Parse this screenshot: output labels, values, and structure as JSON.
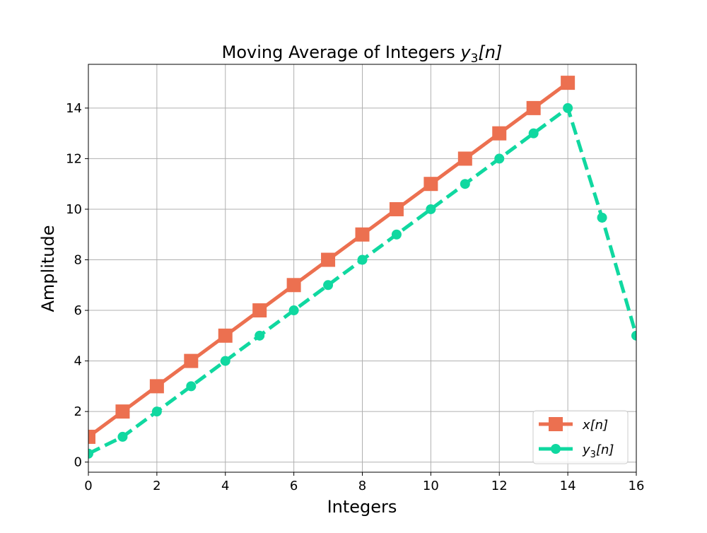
{
  "chart_data": {
    "type": "line",
    "title": "Moving Average of Integers y₃[n]",
    "title_parts": {
      "prefix": "Moving Average of Integers ",
      "var": "y",
      "sub": "3",
      "suffix": "[n]"
    },
    "xlabel": "Integers",
    "ylabel": "Amplitude",
    "xlim": [
      0,
      16
    ],
    "ylim": [
      -0.4,
      15.73
    ],
    "xticks": [
      0,
      2,
      4,
      6,
      8,
      10,
      12,
      14,
      16
    ],
    "yticks": [
      0,
      2,
      4,
      6,
      8,
      10,
      12,
      14
    ],
    "grid": true,
    "legend_position": "lower-right",
    "series": [
      {
        "name": "x[n]",
        "legend": {
          "var": "x",
          "sub": "",
          "suffix": "[n]"
        },
        "color": "#EC7050",
        "linestyle": "solid",
        "marker": "square",
        "x": [
          0,
          1,
          2,
          3,
          4,
          5,
          6,
          7,
          8,
          9,
          10,
          11,
          12,
          13,
          14
        ],
        "y": [
          1,
          2,
          3,
          4,
          5,
          6,
          7,
          8,
          9,
          10,
          11,
          12,
          13,
          14,
          15
        ]
      },
      {
        "name": "y₃[n]",
        "legend": {
          "var": "y",
          "sub": "3",
          "suffix": "[n]"
        },
        "color": "#10D8A0",
        "linestyle": "dashed",
        "marker": "circle",
        "x": [
          0,
          1,
          2,
          3,
          4,
          5,
          6,
          7,
          8,
          9,
          10,
          11,
          12,
          13,
          14,
          15,
          16
        ],
        "y": [
          0.333,
          1,
          2,
          3,
          4,
          5,
          6,
          7,
          8,
          9,
          10,
          11,
          12,
          13,
          14,
          9.667,
          5
        ]
      }
    ]
  }
}
